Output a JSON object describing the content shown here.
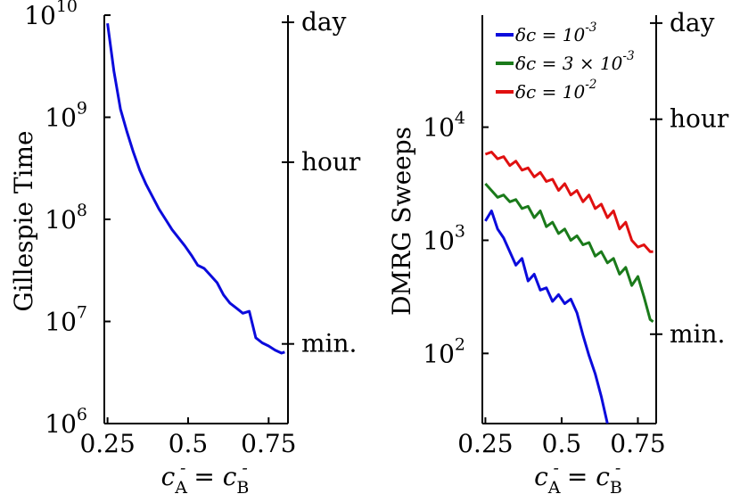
{
  "chart_data": [
    {
      "type": "line",
      "ylabel": "Gillespie Time",
      "xlabel": "c_A^- = c_B^-",
      "xlim": [
        0.24,
        0.81
      ],
      "ylim_log10": [
        6,
        10
      ],
      "yscale": "log",
      "grid": false,
      "x_ticks": [
        {
          "value": 0.25,
          "label": "0.25"
        },
        {
          "value": 0.5,
          "label": "0.5"
        },
        {
          "value": 0.75,
          "label": "0.75"
        }
      ],
      "y_ticks": [
        {
          "exp": 6,
          "base": "10",
          "sup": "6"
        },
        {
          "exp": 7,
          "base": "10",
          "sup": "7"
        },
        {
          "exp": 8,
          "base": "10",
          "sup": "8"
        },
        {
          "exp": 9,
          "base": "10",
          "sup": "9"
        },
        {
          "exp": 10,
          "base": "10",
          "sup": "10"
        }
      ],
      "right_axis_ticks": [
        {
          "log10": 9.93,
          "label": "day"
        },
        {
          "log10": 8.56,
          "label": "hour"
        },
        {
          "log10": 6.78,
          "label": "min."
        }
      ],
      "series": [
        {
          "color": "#0b0bdc",
          "x": [
            0.25,
            0.27,
            0.29,
            0.31,
            0.33,
            0.35,
            0.37,
            0.39,
            0.41,
            0.43,
            0.45,
            0.47,
            0.49,
            0.51,
            0.53,
            0.55,
            0.57,
            0.59,
            0.61,
            0.63,
            0.65,
            0.67,
            0.69,
            0.71,
            0.73,
            0.75,
            0.77,
            0.79,
            0.8
          ],
          "log10y": [
            9.92,
            9.45,
            9.08,
            8.86,
            8.66,
            8.48,
            8.34,
            8.22,
            8.1,
            8.0,
            7.9,
            7.82,
            7.74,
            7.65,
            7.55,
            7.52,
            7.45,
            7.38,
            7.26,
            7.18,
            7.13,
            7.08,
            7.1,
            6.84,
            6.79,
            6.76,
            6.72,
            6.69,
            6.7
          ]
        }
      ]
    },
    {
      "type": "line",
      "ylabel": "DMRG Sweeps",
      "xlabel": "c_A^- = c_B^-",
      "xlim": [
        0.24,
        0.81
      ],
      "ylim_log10": [
        1.38,
        4.99
      ],
      "yscale": "log",
      "grid": false,
      "x_ticks": [
        {
          "value": 0.25,
          "label": "0.25"
        },
        {
          "value": 0.5,
          "label": "0.5"
        },
        {
          "value": 0.75,
          "label": "0.75"
        }
      ],
      "y_ticks": [
        {
          "exp": 2,
          "base": "10",
          "sup": "2"
        },
        {
          "exp": 3,
          "base": "10",
          "sup": "3"
        },
        {
          "exp": 4,
          "base": "10",
          "sup": "4"
        }
      ],
      "right_axis_ticks": [
        {
          "log10": 4.92,
          "label": "day"
        },
        {
          "log10": 4.07,
          "label": "hour"
        },
        {
          "log10": 2.17,
          "label": "min."
        }
      ],
      "legend_position": "top-right",
      "series": [
        {
          "name": "δc = 10^-3",
          "color": "#0b0bdc",
          "x": [
            0.25,
            0.27,
            0.29,
            0.31,
            0.33,
            0.35,
            0.37,
            0.39,
            0.41,
            0.43,
            0.45,
            0.47,
            0.49,
            0.51,
            0.53,
            0.55,
            0.57,
            0.59,
            0.61,
            0.63,
            0.65
          ],
          "log10y": [
            3.17,
            3.26,
            3.1,
            3.02,
            2.9,
            2.78,
            2.84,
            2.64,
            2.7,
            2.56,
            2.58,
            2.46,
            2.52,
            2.44,
            2.48,
            2.36,
            2.16,
            1.98,
            1.82,
            1.62,
            1.38
          ]
        },
        {
          "name": "δc = 3 × 10^-3",
          "color": "#1a7a1a",
          "x": [
            0.25,
            0.27,
            0.29,
            0.31,
            0.33,
            0.35,
            0.37,
            0.39,
            0.41,
            0.43,
            0.45,
            0.47,
            0.49,
            0.51,
            0.53,
            0.55,
            0.57,
            0.59,
            0.61,
            0.63,
            0.65,
            0.67,
            0.69,
            0.71,
            0.73,
            0.75,
            0.77,
            0.79,
            0.8
          ],
          "log10y": [
            3.5,
            3.44,
            3.38,
            3.4,
            3.34,
            3.36,
            3.28,
            3.3,
            3.2,
            3.26,
            3.12,
            3.16,
            3.06,
            3.1,
            3.0,
            3.04,
            2.96,
            2.98,
            2.86,
            2.9,
            2.8,
            2.84,
            2.7,
            2.76,
            2.6,
            2.68,
            2.5,
            2.3,
            2.28
          ]
        },
        {
          "name": "δc = 10^-2",
          "color": "#e01010",
          "x": [
            0.25,
            0.27,
            0.29,
            0.31,
            0.33,
            0.35,
            0.37,
            0.39,
            0.41,
            0.43,
            0.45,
            0.47,
            0.49,
            0.51,
            0.53,
            0.55,
            0.57,
            0.59,
            0.61,
            0.63,
            0.65,
            0.67,
            0.69,
            0.71,
            0.73,
            0.75,
            0.77,
            0.79,
            0.8
          ],
          "log10y": [
            3.76,
            3.78,
            3.72,
            3.74,
            3.66,
            3.7,
            3.62,
            3.64,
            3.56,
            3.6,
            3.52,
            3.54,
            3.44,
            3.5,
            3.4,
            3.44,
            3.34,
            3.4,
            3.28,
            3.32,
            3.2,
            3.26,
            3.1,
            3.16,
            3.0,
            2.94,
            2.96,
            2.9,
            2.9
          ]
        }
      ]
    }
  ]
}
